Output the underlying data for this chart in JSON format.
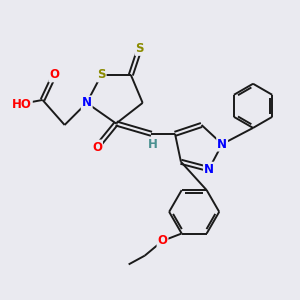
{
  "bg_color": "#eaeaf0",
  "atom_colors": {
    "S": "#8b8b00",
    "N": "#0000ff",
    "O": "#ff0000",
    "H": "#4a9090",
    "C": "#000000"
  },
  "bond_color": "#1a1a1a",
  "lw": 1.4
}
